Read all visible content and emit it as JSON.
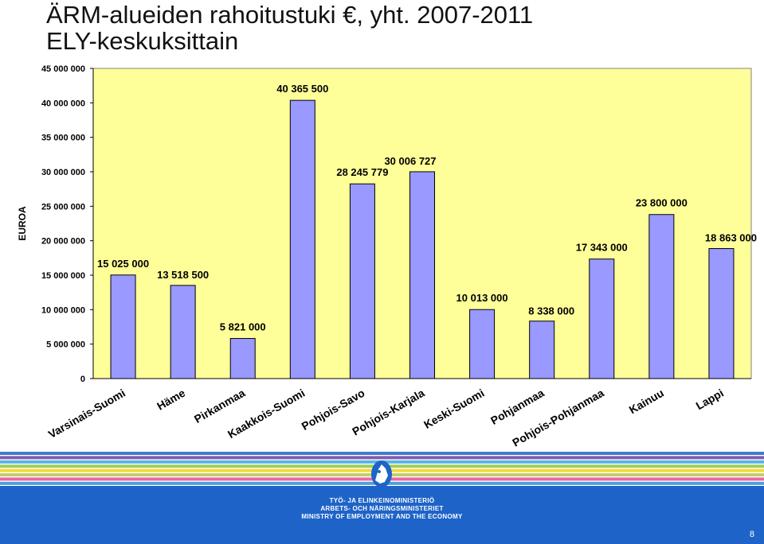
{
  "title_line1": "ÄRM-alueiden rahoitustuki €, yht. 2007-2011",
  "title_line2": "ELY-keskuksittain",
  "chart_data": {
    "type": "bar",
    "ylabel": "EUROA",
    "xlabel": "",
    "ylim": [
      0,
      45000000
    ],
    "yticks": [
      0,
      5000000,
      10000000,
      15000000,
      20000000,
      25000000,
      30000000,
      35000000,
      40000000,
      45000000
    ],
    "ytick_labels": [
      "0",
      "5 000 000",
      "10 000 000",
      "15 000 000",
      "20 000 000",
      "25 000 000",
      "30 000 000",
      "35 000 000",
      "40 000 000",
      "45 000 000"
    ],
    "categories": [
      "Varsinais-Suomi",
      "Häme",
      "Pirkanmaa",
      "Kaakkois-Suomi",
      "Pohjois-Savo",
      "Pohjois-Karjala",
      "Keski-Suomi",
      "Pohjanmaa",
      "Pohjois-Pohjanmaa",
      "Kainuu",
      "Lappi"
    ],
    "values": [
      15025000,
      13518500,
      5821000,
      40365500,
      28245779,
      30006727,
      10013000,
      8338000,
      17343000,
      23800000,
      18863000
    ],
    "data_labels": [
      "15 025 000",
      "13 518 500",
      "5 821 000",
      "40 365 500",
      "28 245 779",
      "30 006 727",
      "10 013 000",
      "8 338 000",
      "17 343 000",
      "23 800 000",
      "18 863 000"
    ],
    "grid": false,
    "legend": "none",
    "colors": {
      "bar_fill": "#9999ff",
      "bar_stroke": "#000000",
      "plot_bg": "#ffff99",
      "plot_border": "#808080"
    }
  },
  "footer": {
    "ministry_fi": "TYÖ- JA ELINKEINOMINISTERIÖ",
    "ministry_sv": "ARBETS- OCH NÄRINGSMINISTERIET",
    "ministry_en": "MINISTRY OF EMPLOYMENT AND THE ECONOMY",
    "page_number": "8",
    "logo": "finnish-lion-crest",
    "background_color": "#1e63c8",
    "stripe_colors": [
      "#1e63c8",
      "#6a3fa0",
      "#3aa7e0",
      "#8cc63f",
      "#f3d21a",
      "#b9c84a",
      "#e44d96",
      "#2a8fd8"
    ]
  }
}
